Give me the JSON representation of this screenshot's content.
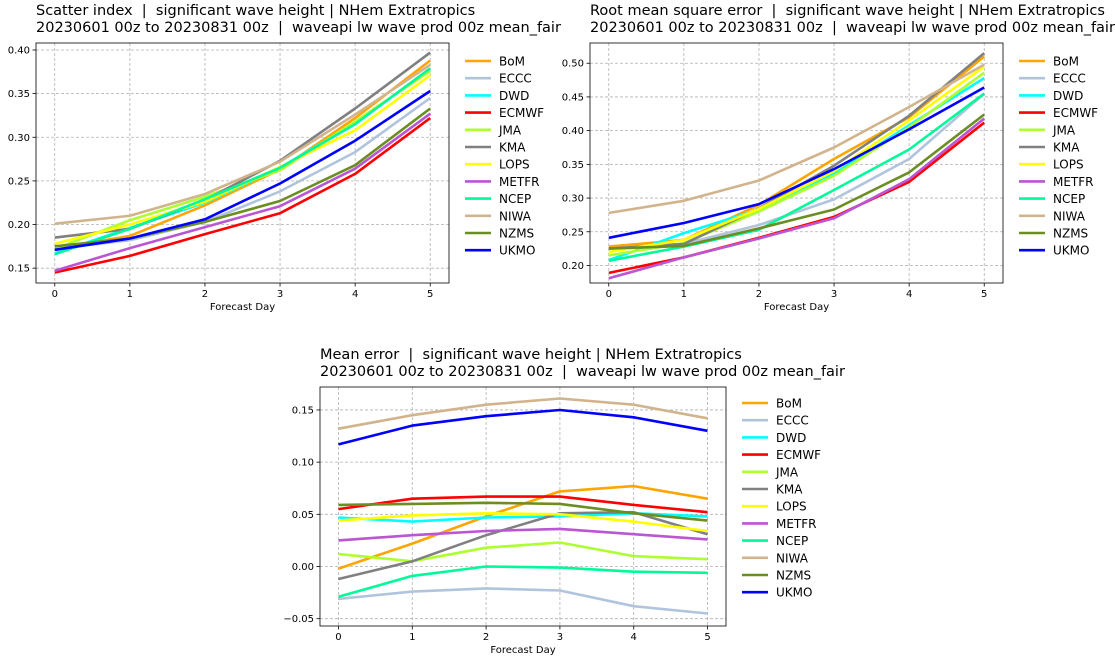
{
  "colors": {
    "BoM": "#ffa500",
    "ECCC": "#b0c4de",
    "DWD": "#00ffff",
    "ECMWF": "#ff0000",
    "JMA": "#adff2f",
    "KMA": "#808080",
    "LOPS": "#ffff00",
    "METFR": "#ba55d3",
    "NCEP": "#00fa9a",
    "NIWA": "#d2b48c",
    "NZMS": "#6b8e23",
    "UKMO": "#0000ff"
  },
  "chart_data": [
    {
      "type": "line",
      "title": "Scatter index  |  significant wave height | NHem Extratropics",
      "subtitle": "20230601 00z to 20230831 00z  |  waveapi lw wave prod 00z mean_fair",
      "xlabel": "Forecast Day",
      "ylabel": "",
      "x": [
        0,
        1,
        2,
        3,
        4,
        5
      ],
      "xlim": [
        -0.25,
        5.25
      ],
      "ylim": [
        0.133,
        0.408
      ],
      "yticks": [
        0.15,
        0.2,
        0.25,
        0.3,
        0.35,
        0.4
      ],
      "ytick_labels": [
        "0.15",
        "0.20",
        "0.25",
        "0.30",
        "0.35",
        "0.40"
      ],
      "grid": true,
      "legend": "right-outside",
      "series": [
        {
          "name": "BoM",
          "values": [
            0.172,
            0.187,
            0.222,
            0.263,
            0.322,
            0.388
          ]
        },
        {
          "name": "ECCC",
          "values": [
            0.172,
            0.182,
            0.203,
            0.238,
            0.283,
            0.345
          ]
        },
        {
          "name": "DWD",
          "values": [
            0.167,
            0.196,
            0.225,
            0.265,
            0.316,
            0.378
          ]
        },
        {
          "name": "ECMWF",
          "values": [
            0.145,
            0.164,
            0.189,
            0.213,
            0.258,
            0.322
          ]
        },
        {
          "name": "JMA",
          "values": [
            0.172,
            0.205,
            0.232,
            0.262,
            0.318,
            0.376
          ]
        },
        {
          "name": "KMA",
          "values": [
            0.185,
            0.195,
            0.228,
            0.273,
            0.333,
            0.397
          ]
        },
        {
          "name": "LOPS",
          "values": [
            0.178,
            0.2,
            0.226,
            0.266,
            0.308,
            0.371
          ]
        },
        {
          "name": "METFR",
          "values": [
            0.147,
            0.173,
            0.197,
            0.221,
            0.264,
            0.327
          ]
        },
        {
          "name": "NCEP",
          "values": [
            0.166,
            0.195,
            0.229,
            0.265,
            0.315,
            0.379
          ]
        },
        {
          "name": "NIWA",
          "values": [
            0.201,
            0.21,
            0.235,
            0.272,
            0.326,
            0.383
          ]
        },
        {
          "name": "NZMS",
          "values": [
            0.175,
            0.184,
            0.203,
            0.227,
            0.268,
            0.333
          ]
        },
        {
          "name": "UKMO",
          "values": [
            0.171,
            0.184,
            0.206,
            0.247,
            0.296,
            0.353
          ]
        }
      ]
    },
    {
      "type": "line",
      "title": "Root mean square error  |  significant wave height | NHem Extratropics",
      "subtitle": "20230601 00z to 20230831 00z  |  waveapi lw wave prod 00z mean_fair",
      "xlabel": "Forecast Day",
      "ylabel": "",
      "x": [
        0,
        1,
        2,
        3,
        4,
        5
      ],
      "xlim": [
        -0.25,
        5.25
      ],
      "ylim": [
        0.174,
        0.53
      ],
      "yticks": [
        0.2,
        0.25,
        0.3,
        0.35,
        0.4,
        0.45,
        0.5
      ],
      "ytick_labels": [
        "0.20",
        "0.25",
        "0.30",
        "0.35",
        "0.40",
        "0.45",
        "0.50"
      ],
      "grid": true,
      "legend": "right-outside",
      "series": [
        {
          "name": "BoM",
          "values": [
            0.228,
            0.238,
            0.29,
            0.358,
            0.42,
            0.51
          ]
        },
        {
          "name": "ECCC",
          "values": [
            0.225,
            0.232,
            0.26,
            0.298,
            0.358,
            0.455
          ]
        },
        {
          "name": "DWD",
          "values": [
            0.208,
            0.248,
            0.283,
            0.336,
            0.408,
            0.478
          ]
        },
        {
          "name": "ECMWF",
          "values": [
            0.189,
            0.212,
            0.241,
            0.272,
            0.324,
            0.412
          ]
        },
        {
          "name": "JMA",
          "values": [
            0.215,
            0.233,
            0.28,
            0.333,
            0.405,
            0.486
          ]
        },
        {
          "name": "KMA",
          "values": [
            0.225,
            0.232,
            0.285,
            0.348,
            0.422,
            0.515
          ]
        },
        {
          "name": "LOPS",
          "values": [
            0.22,
            0.238,
            0.284,
            0.34,
            0.415,
            0.495
          ]
        },
        {
          "name": "METFR",
          "values": [
            0.181,
            0.212,
            0.24,
            0.27,
            0.328,
            0.418
          ]
        },
        {
          "name": "NCEP",
          "values": [
            0.207,
            0.228,
            0.253,
            0.312,
            0.372,
            0.455
          ]
        },
        {
          "name": "NIWA",
          "values": [
            0.278,
            0.296,
            0.326,
            0.375,
            0.435,
            0.498
          ]
        },
        {
          "name": "NZMS",
          "values": [
            0.225,
            0.229,
            0.255,
            0.283,
            0.338,
            0.424
          ]
        },
        {
          "name": "UKMO",
          "values": [
            0.241,
            0.263,
            0.291,
            0.343,
            0.402,
            0.464
          ]
        }
      ]
    },
    {
      "type": "line",
      "title": "Mean error  |  significant wave height | NHem Extratropics",
      "subtitle": "20230601 00z to 20230831 00z  |  waveapi lw wave prod 00z mean_fair",
      "xlabel": "Forecast Day",
      "ylabel": "",
      "x": [
        0,
        1,
        2,
        3,
        4,
        5
      ],
      "xlim": [
        -0.25,
        5.25
      ],
      "ylim": [
        -0.057,
        0.172
      ],
      "yticks": [
        -0.05,
        0.0,
        0.05,
        0.1,
        0.15
      ],
      "ytick_labels": [
        "−0.05",
        "0.00",
        "0.05",
        "0.10",
        "0.15"
      ],
      "grid": true,
      "legend": "right-outside",
      "series": [
        {
          "name": "BoM",
          "values": [
            -0.002,
            0.022,
            0.048,
            0.072,
            0.077,
            0.065
          ]
        },
        {
          "name": "ECCC",
          "values": [
            -0.031,
            -0.024,
            -0.021,
            -0.023,
            -0.038,
            -0.045
          ]
        },
        {
          "name": "DWD",
          "values": [
            0.047,
            0.043,
            0.047,
            0.048,
            0.051,
            0.048
          ]
        },
        {
          "name": "ECMWF",
          "values": [
            0.055,
            0.065,
            0.067,
            0.067,
            0.059,
            0.052
          ]
        },
        {
          "name": "JMA",
          "values": [
            0.012,
            0.005,
            0.018,
            0.023,
            0.01,
            0.007
          ]
        },
        {
          "name": "KMA",
          "values": [
            -0.012,
            0.005,
            0.03,
            0.051,
            0.052,
            0.031
          ]
        },
        {
          "name": "LOPS",
          "values": [
            0.044,
            0.049,
            0.051,
            0.05,
            0.043,
            0.034
          ]
        },
        {
          "name": "METFR",
          "values": [
            0.025,
            0.03,
            0.034,
            0.036,
            0.031,
            0.026
          ]
        },
        {
          "name": "NCEP",
          "values": [
            -0.029,
            -0.009,
            0.0,
            -0.001,
            -0.005,
            -0.006
          ]
        },
        {
          "name": "NIWA",
          "values": [
            0.132,
            0.145,
            0.155,
            0.161,
            0.155,
            0.142
          ]
        },
        {
          "name": "NZMS",
          "values": [
            0.059,
            0.06,
            0.061,
            0.06,
            0.051,
            0.044
          ]
        },
        {
          "name": "UKMO",
          "values": [
            0.117,
            0.135,
            0.144,
            0.15,
            0.143,
            0.13
          ]
        }
      ]
    }
  ]
}
